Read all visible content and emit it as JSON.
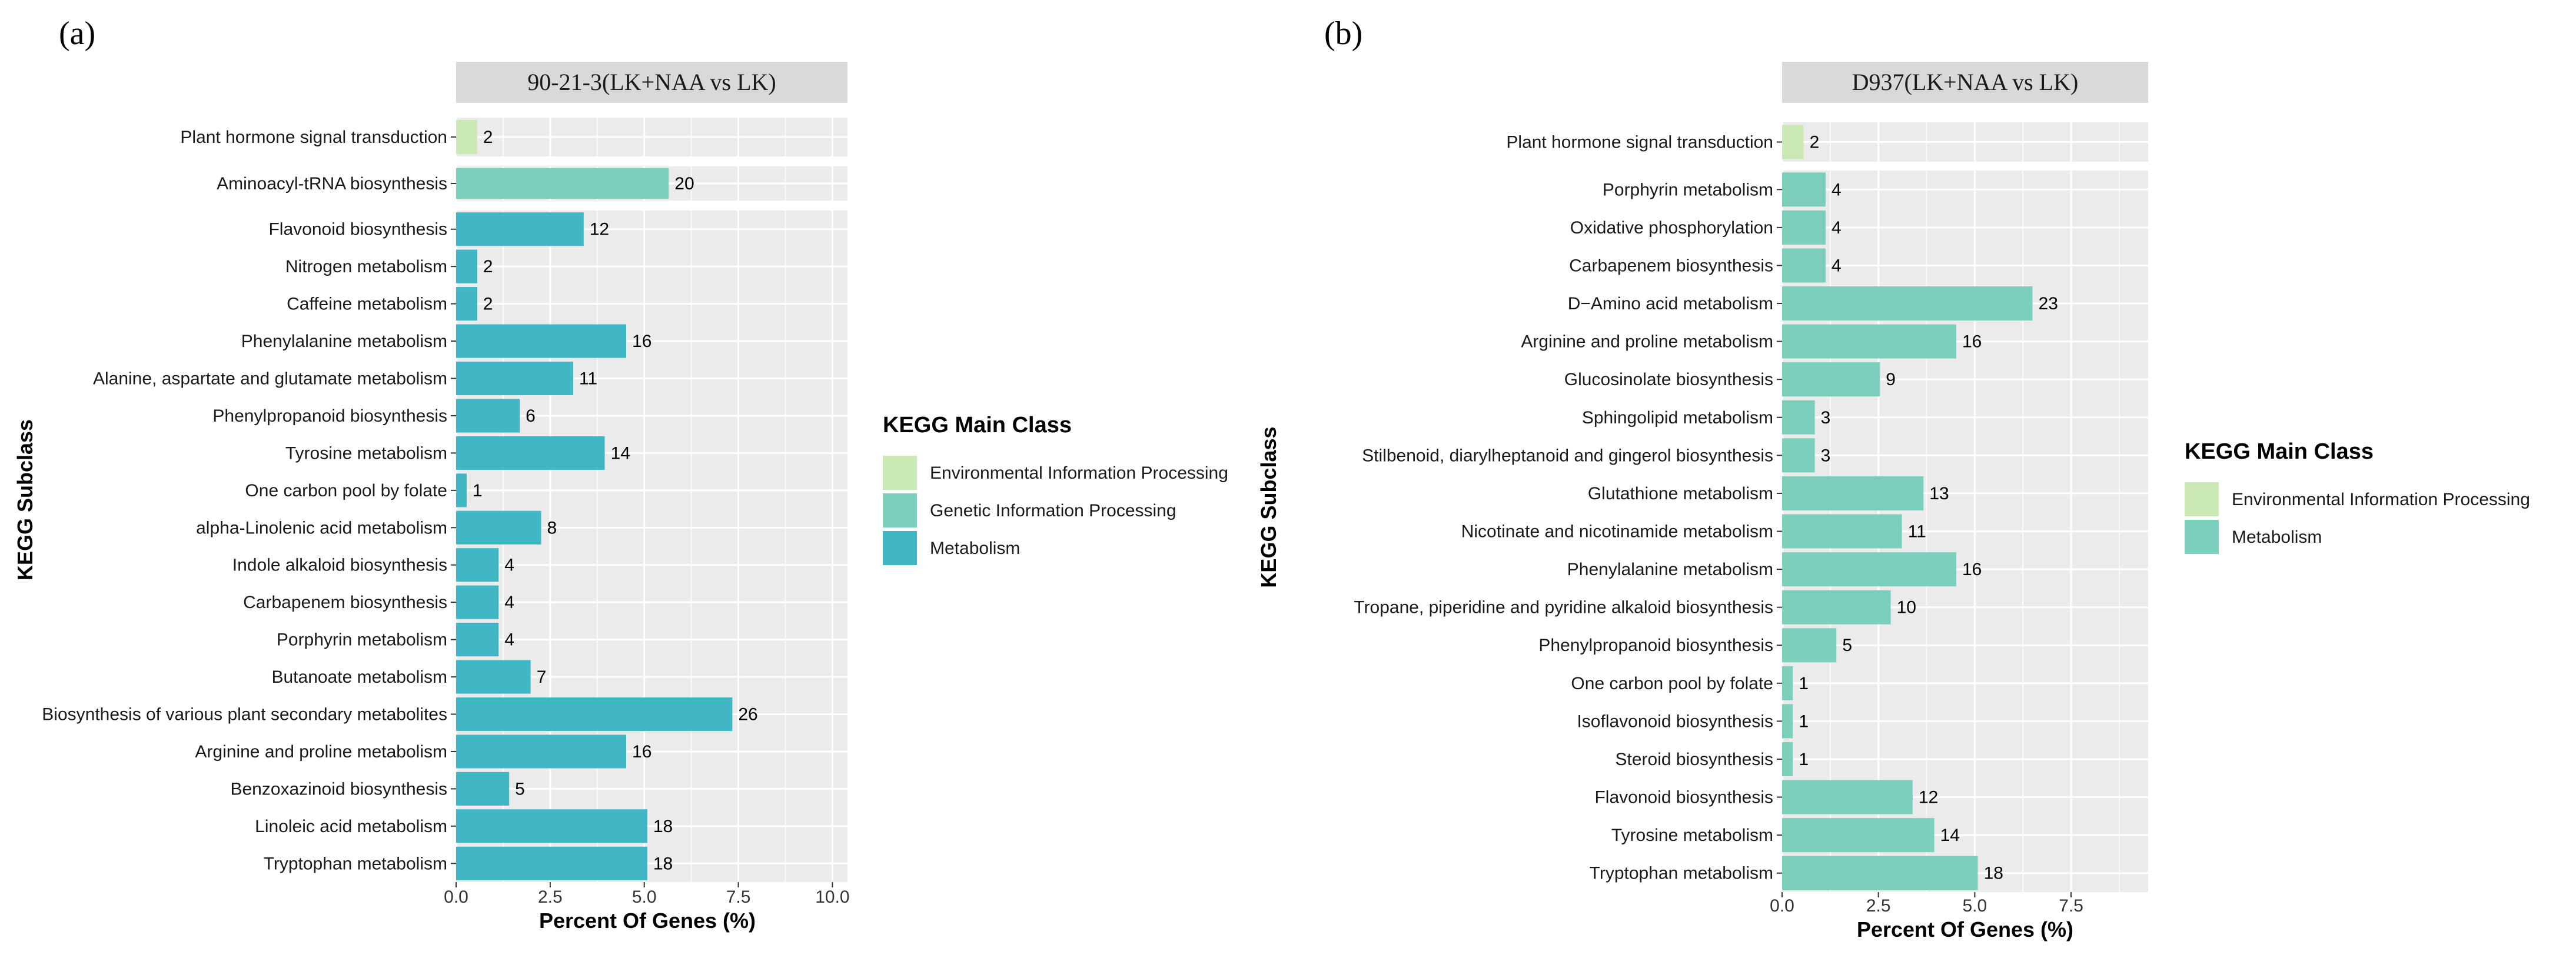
{
  "chart_data": [
    {
      "type": "bar",
      "orientation": "horizontal",
      "panel": "(a)",
      "title": "90-21-3(LK+NAA vs LK)",
      "xlabel": "Percent Of Genes (%)",
      "ylabel": "KEGG Subclass",
      "xlim": [
        0,
        10.4
      ],
      "xticks": [
        0.0,
        2.5,
        5.0,
        7.5,
        10.0
      ],
      "xtick_labels": [
        "0.0",
        "2.5",
        "5.0",
        "7.5",
        "10.0"
      ],
      "grid": true,
      "legend_title": "KEGG Main Class",
      "legend_position": "right",
      "legend": [
        {
          "name": "Environmental Information Processing",
          "color": "#c9e8b4"
        },
        {
          "name": "Genetic Information Processing",
          "color": "#7dcfbd"
        },
        {
          "name": "Metabolism",
          "color": "#41b6c4"
        }
      ],
      "groups": [
        {
          "class": "Environmental Information Processing",
          "color": "#c9e8b4",
          "items": [
            {
              "label": "Plant hormone signal transduction",
              "percent": 0.56,
              "count": "2"
            }
          ]
        },
        {
          "class": "Genetic Information Processing",
          "color": "#7dcfbd",
          "items": [
            {
              "label": "Aminoacyl-tRNA biosynthesis",
              "percent": 5.65,
              "count": "20"
            }
          ]
        },
        {
          "class": "Metabolism",
          "color": "#41b6c4",
          "items": [
            {
              "label": "Flavonoid biosynthesis",
              "percent": 3.39,
              "count": "12"
            },
            {
              "label": "Nitrogen metabolism",
              "percent": 0.56,
              "count": "2"
            },
            {
              "label": "Caffeine metabolism",
              "percent": 0.56,
              "count": "2"
            },
            {
              "label": "Phenylalanine metabolism",
              "percent": 4.52,
              "count": "16"
            },
            {
              "label": "Alanine, aspartate and glutamate metabolism",
              "percent": 3.11,
              "count": "11"
            },
            {
              "label": "Phenylpropanoid biosynthesis",
              "percent": 1.69,
              "count": "6"
            },
            {
              "label": "Tyrosine metabolism",
              "percent": 3.95,
              "count": "14"
            },
            {
              "label": "One carbon pool by folate",
              "percent": 0.28,
              "count": "1"
            },
            {
              "label": "alpha-Linolenic acid metabolism",
              "percent": 2.26,
              "count": "8"
            },
            {
              "label": "Indole alkaloid biosynthesis",
              "percent": 1.13,
              "count": "4"
            },
            {
              "label": "Carbapenem biosynthesis",
              "percent": 1.13,
              "count": "4"
            },
            {
              "label": "Porphyrin metabolism",
              "percent": 1.13,
              "count": "4"
            },
            {
              "label": "Butanoate metabolism",
              "percent": 1.98,
              "count": "7"
            },
            {
              "label": "Biosynthesis of various plant secondary metabolites",
              "percent": 7.34,
              "count": "26"
            },
            {
              "label": "Arginine and proline metabolism",
              "percent": 4.52,
              "count": "16"
            },
            {
              "label": "Benzoxazinoid biosynthesis",
              "percent": 1.41,
              "count": "5"
            },
            {
              "label": "Linoleic acid metabolism",
              "percent": 5.08,
              "count": "18"
            },
            {
              "label": "Tryptophan metabolism",
              "percent": 5.08,
              "count": "18"
            }
          ]
        }
      ]
    },
    {
      "type": "bar",
      "orientation": "horizontal",
      "panel": "(b)",
      "title": "D937(LK+NAA vs LK)",
      "xlabel": "Percent Of Genes (%)",
      "ylabel": "KEGG Subclass",
      "xlim": [
        0,
        9.5
      ],
      "xticks": [
        0.0,
        2.5,
        5.0,
        7.5
      ],
      "xtick_labels": [
        "0.0",
        "2.5",
        "5.0",
        "7.5"
      ],
      "grid": true,
      "legend_title": "KEGG Main Class",
      "legend_position": "right",
      "legend": [
        {
          "name": "Environmental Information Processing",
          "color": "#c9e8b4"
        },
        {
          "name": "Metabolism",
          "color": "#7dcfbd"
        }
      ],
      "groups": [
        {
          "class": "Environmental Information Processing",
          "color": "#c9e8b4",
          "items": [
            {
              "label": "Plant hormone signal transduction",
              "percent": 0.56,
              "count": "2"
            }
          ]
        },
        {
          "class": "Metabolism",
          "color": "#7dcfbd",
          "items": [
            {
              "label": "Porphyrin metabolism",
              "percent": 1.13,
              "count": "4"
            },
            {
              "label": "Oxidative phosphorylation",
              "percent": 1.13,
              "count": "4"
            },
            {
              "label": "Carbapenem biosynthesis",
              "percent": 1.13,
              "count": "4"
            },
            {
              "label": "D−Amino acid metabolism",
              "percent": 6.5,
              "count": "23"
            },
            {
              "label": "Arginine and proline metabolism",
              "percent": 4.52,
              "count": "16"
            },
            {
              "label": "Glucosinolate biosynthesis",
              "percent": 2.54,
              "count": "9"
            },
            {
              "label": "Sphingolipid metabolism",
              "percent": 0.85,
              "count": "3"
            },
            {
              "label": "Stilbenoid, diarylheptanoid and gingerol biosynthesis",
              "percent": 0.85,
              "count": "3"
            },
            {
              "label": "Glutathione metabolism",
              "percent": 3.67,
              "count": "13"
            },
            {
              "label": "Nicotinate and nicotinamide metabolism",
              "percent": 3.11,
              "count": "11"
            },
            {
              "label": "Phenylalanine metabolism",
              "percent": 4.52,
              "count": "16"
            },
            {
              "label": "Tropane, piperidine and pyridine alkaloid biosynthesis",
              "percent": 2.82,
              "count": "10"
            },
            {
              "label": "Phenylpropanoid biosynthesis",
              "percent": 1.41,
              "count": "5"
            },
            {
              "label": "One carbon pool by folate",
              "percent": 0.28,
              "count": "1"
            },
            {
              "label": "Isoflavonoid biosynthesis",
              "percent": 0.28,
              "count": "1"
            },
            {
              "label": "Steroid biosynthesis",
              "percent": 0.28,
              "count": "1"
            },
            {
              "label": "Flavonoid biosynthesis",
              "percent": 3.39,
              "count": "12"
            },
            {
              "label": "Tyrosine metabolism",
              "percent": 3.95,
              "count": "14"
            },
            {
              "label": "Tryptophan metabolism",
              "percent": 5.08,
              "count": "18"
            }
          ]
        }
      ]
    }
  ]
}
